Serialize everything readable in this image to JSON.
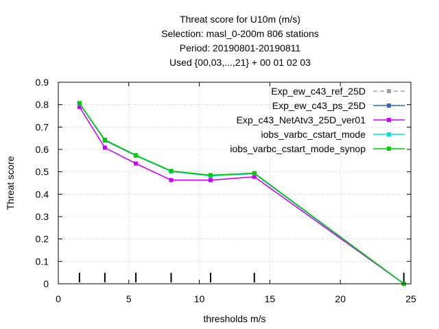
{
  "chart_data": {
    "type": "line",
    "title_lines": [
      "Threat score  for U10m (m/s)",
      "Selection: masl_0-200m    806 stations",
      "Period: 20190801-20190811",
      "Used {00,03,...,21} + 00 01 02 03"
    ],
    "xlabel": "thresholds m/s",
    "ylabel": "Threat score",
    "xlim": [
      0,
      25
    ],
    "ylim": [
      0,
      0.9
    ],
    "xticks": [
      0,
      5,
      10,
      15,
      20,
      25
    ],
    "yticks": [
      0,
      0.1,
      0.2,
      0.3,
      0.4,
      0.5,
      0.6,
      0.7,
      0.8,
      0.9
    ],
    "grid": true,
    "legend_position": "top-right",
    "threshold_markers": [
      1.5,
      3.3,
      5.5,
      8.0,
      10.8,
      13.9,
      24.5
    ],
    "series": [
      {
        "name": "Exp_ew_c43_ref_25D",
        "color": "#a0a0a0",
        "dash": true,
        "x": [
          1.5,
          3.3,
          5.5,
          8.0,
          10.8,
          13.9,
          24.5
        ],
        "y": [
          0.805,
          0.64,
          0.572,
          0.502,
          0.482,
          0.492,
          0.0
        ]
      },
      {
        "name": "Exp_ew_c43_ps_25D",
        "color": "#3366cc",
        "dash": false,
        "x": [
          1.5,
          3.3,
          5.5,
          8.0,
          10.8,
          13.9,
          24.5
        ],
        "y": [
          0.805,
          0.64,
          0.572,
          0.502,
          0.482,
          0.492,
          0.0
        ]
      },
      {
        "name": "Exp_c43_NetAtv3_25D_ver01",
        "color": "#cc00ff",
        "dash": false,
        "x": [
          1.5,
          3.3,
          5.5,
          8.0,
          10.8,
          13.9,
          24.5
        ],
        "y": [
          0.79,
          0.608,
          0.537,
          0.463,
          0.463,
          0.478,
          0.0
        ]
      },
      {
        "name": "iobs_varbc_cstart_mode",
        "color": "#00e0e0",
        "dash": false,
        "x": [
          1.5,
          3.3,
          5.5,
          8.0,
          10.8,
          13.9,
          24.5
        ],
        "y": [
          0.805,
          0.642,
          0.573,
          0.503,
          0.482,
          0.493,
          0.0
        ]
      },
      {
        "name": "iobs_varbc_cstart_mode_synop",
        "color": "#00cc00",
        "dash": false,
        "x": [
          1.5,
          3.3,
          5.5,
          8.0,
          10.8,
          13.9,
          24.5
        ],
        "y": [
          0.807,
          0.643,
          0.574,
          0.504,
          0.485,
          0.494,
          0.0
        ]
      }
    ]
  }
}
